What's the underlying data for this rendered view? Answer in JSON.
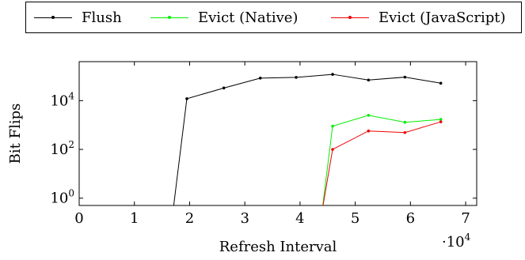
{
  "chart_data": {
    "type": "line",
    "xlabel": "Refresh Interval",
    "ylabel": "Bit Flips",
    "x_multiplier": "·10",
    "x_multiplier_exp": "4",
    "xlim": [
      0,
      72000
    ],
    "ylim_log10": [
      -0.3,
      5.6
    ],
    "y_scale": "log",
    "grid": false,
    "legend_position": "top",
    "x_ticks": [
      {
        "value": 0,
        "label": "0"
      },
      {
        "value": 10000,
        "label": "1"
      },
      {
        "value": 20000,
        "label": "2"
      },
      {
        "value": 30000,
        "label": "3"
      },
      {
        "value": 40000,
        "label": "4"
      },
      {
        "value": 50000,
        "label": "5"
      },
      {
        "value": 60000,
        "label": "6"
      },
      {
        "value": 70000,
        "label": "7"
      }
    ],
    "y_ticks": [
      {
        "value": 1,
        "base": "10",
        "exp": "0"
      },
      {
        "value": 100,
        "base": "10",
        "exp": "2"
      },
      {
        "value": 10000,
        "base": "10",
        "exp": "4"
      }
    ],
    "series": [
      {
        "name": "Flush",
        "color": "#000000",
        "x": [
          17000,
          19500,
          26200,
          32800,
          39300,
          45900,
          52400,
          59000,
          65500
        ],
        "y": [
          0.3,
          12000,
          33000,
          84000,
          90000,
          120000,
          70000,
          92000,
          52000
        ]
      },
      {
        "name": "Evict (Native)",
        "color": "#00ee00",
        "x": [
          44000,
          45900,
          52400,
          59000,
          65500
        ],
        "y": [
          0.3,
          900,
          2500,
          1300,
          1700
        ]
      },
      {
        "name": "Evict (JavaScript)",
        "color": "#ee0000",
        "x": [
          44000,
          45900,
          52400,
          59000,
          65500
        ],
        "y": [
          0.3,
          100,
          570,
          490,
          1350
        ]
      }
    ]
  }
}
